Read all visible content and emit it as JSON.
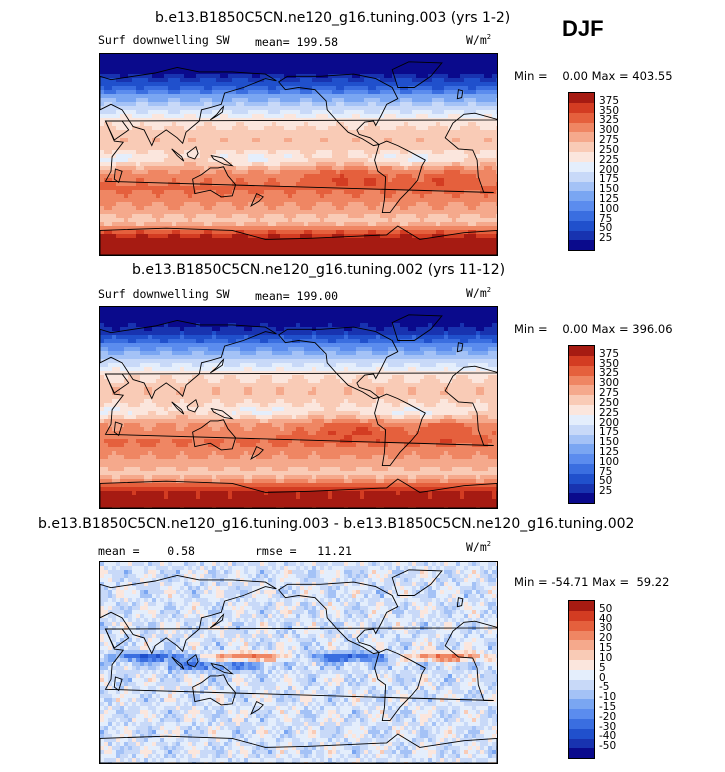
{
  "season": "DJF",
  "panels": [
    {
      "title": "b.e13.B1850C5CN.ne120_g16.tuning.003 (yrs 1-2)",
      "left_label": "Surf downwelling SW",
      "center_label": "mean= 199.58",
      "units": "W/m",
      "units_sup": "2",
      "minmax": "Min =    0.00 Max = 403.55",
      "colors": [
        "#0a0a8c",
        "#1833b0",
        "#2050cc",
        "#3a6ee0",
        "#5b8cee",
        "#7aa6f2",
        "#a4c2f6",
        "#c8d9f8",
        "#e4eefc",
        "#fbe6dd",
        "#f9cbb6",
        "#f5a98c",
        "#ef8663",
        "#e5603d",
        "#d33c22",
        "#a61b12"
      ],
      "ticks": [
        "375",
        "350",
        "325",
        "300",
        "275",
        "250",
        "225",
        "200",
        "175",
        "150",
        "125",
        "100",
        "75",
        "50",
        "25"
      ]
    },
    {
      "title": "b.e13.B1850C5CN.ne120_g16.tuning.002 (yrs 11-12)",
      "left_label": "Surf downwelling SW",
      "center_label": "mean= 199.00",
      "units": "W/m",
      "units_sup": "2",
      "minmax": "Min =    0.00 Max = 396.06",
      "colors": [
        "#0a0a8c",
        "#1833b0",
        "#2050cc",
        "#3a6ee0",
        "#5b8cee",
        "#7aa6f2",
        "#a4c2f6",
        "#c8d9f8",
        "#e4eefc",
        "#fbe6dd",
        "#f9cbb6",
        "#f5a98c",
        "#ef8663",
        "#e5603d",
        "#d33c22",
        "#a61b12"
      ],
      "ticks": [
        "375",
        "350",
        "325",
        "300",
        "275",
        "250",
        "225",
        "200",
        "175",
        "150",
        "125",
        "100",
        "75",
        "50",
        "25"
      ]
    },
    {
      "title": "b.e13.B1850C5CN.ne120_g16.tuning.003 - b.e13.B1850C5CN.ne120_g16.tuning.002",
      "left_label": "mean =    0.58",
      "center_label": "rmse =   11.21",
      "units": "W/m",
      "units_sup": "2",
      "minmax": "Min = -54.71 Max =  59.22",
      "colors": [
        "#0a0a8c",
        "#1833b0",
        "#2050cc",
        "#3a6ee0",
        "#5b8cee",
        "#7aa6f2",
        "#a4c2f6",
        "#c8d9f8",
        "#e4eefc",
        "#fbe6dd",
        "#f9cbb6",
        "#f5a98c",
        "#ef8663",
        "#e5603d",
        "#d33c22",
        "#a61b12"
      ],
      "ticks": [
        "50",
        "40",
        "30",
        "20",
        "15",
        "10",
        "5",
        "0",
        "-5",
        "-10",
        "-15",
        "-20",
        "-30",
        "-40",
        "-50"
      ]
    }
  ],
  "chart_data": [
    {
      "type": "heatmap",
      "title": "b.e13.B1850C5CN.ne120_g16.tuning.003 (yrs 1-2)",
      "variable": "Surf downwelling SW",
      "season": "DJF",
      "units": "W/m2",
      "mean": 199.58,
      "min": 0.0,
      "max": 403.55,
      "levels": [
        25,
        50,
        75,
        100,
        125,
        150,
        175,
        200,
        225,
        250,
        275,
        300,
        325,
        350,
        375
      ],
      "colorbar": "blue-white-red",
      "pattern": {
        "latitude_band_values_deg_to_Wm2": [
          [
            75,
            10
          ],
          [
            60,
            80
          ],
          [
            45,
            170
          ],
          [
            30,
            240
          ],
          [
            15,
            270
          ],
          [
            0,
            250
          ],
          [
            -15,
            300
          ],
          [
            -30,
            330
          ],
          [
            -45,
            300
          ],
          [
            -60,
            260
          ],
          [
            -75,
            390
          ]
        ]
      }
    },
    {
      "type": "heatmap",
      "title": "b.e13.B1850C5CN.ne120_g16.tuning.002 (yrs 11-12)",
      "variable": "Surf downwelling SW",
      "season": "DJF",
      "units": "W/m2",
      "mean": 199.0,
      "min": 0.0,
      "max": 396.06,
      "levels": [
        25,
        50,
        75,
        100,
        125,
        150,
        175,
        200,
        225,
        250,
        275,
        300,
        325,
        350,
        375
      ],
      "colorbar": "blue-white-red",
      "pattern": {
        "latitude_band_values_deg_to_Wm2": [
          [
            75,
            10
          ],
          [
            60,
            80
          ],
          [
            45,
            170
          ],
          [
            30,
            240
          ],
          [
            15,
            270
          ],
          [
            0,
            250
          ],
          [
            -15,
            300
          ],
          [
            -30,
            330
          ],
          [
            -45,
            300
          ],
          [
            -60,
            260
          ],
          [
            -75,
            385
          ]
        ]
      }
    },
    {
      "type": "heatmap",
      "title": "b.e13.B1850C5CN.ne120_g16.tuning.003 - b.e13.B1850C5CN.ne120_g16.tuning.002",
      "variable": "difference",
      "season": "DJF",
      "units": "W/m2",
      "mean": 0.58,
      "rmse": 11.21,
      "min": -54.71,
      "max": 59.22,
      "levels": [
        -50,
        -40,
        -30,
        -20,
        -15,
        -10,
        -5,
        0,
        5,
        10,
        15,
        20,
        30,
        40,
        50
      ],
      "colorbar": "blue-white-red"
    }
  ]
}
